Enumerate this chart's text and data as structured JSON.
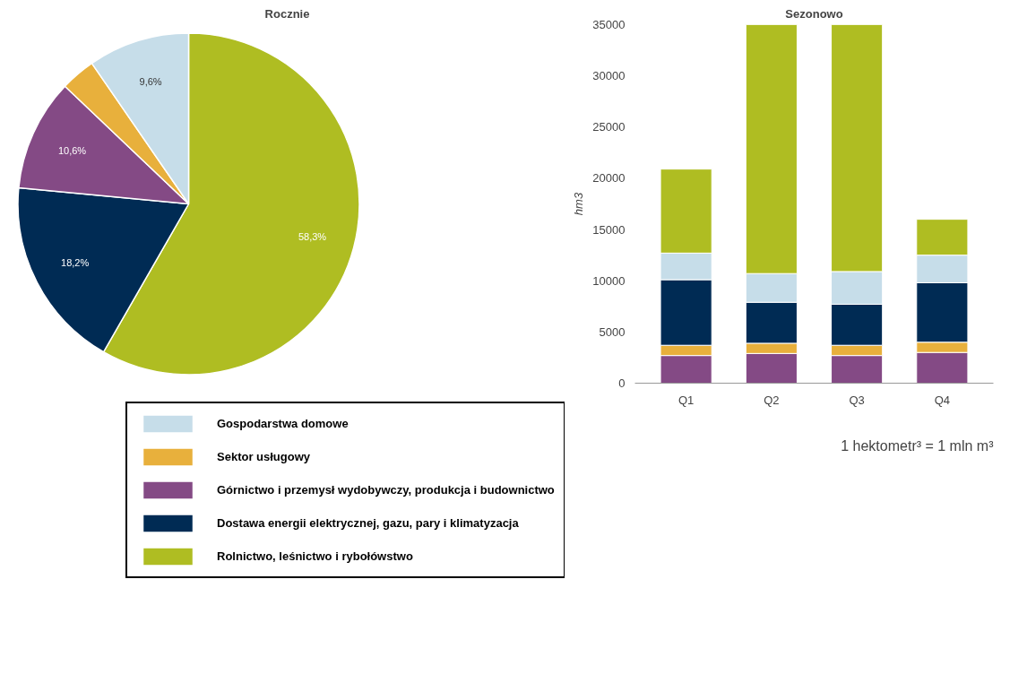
{
  "chart_data": [
    {
      "type": "pie",
      "title": "Rocznie",
      "categories": [
        "Rolnictwo, leśnictwo i rybołówstwo",
        "Dostawa energii elektrycznej, gazu, pary i klimatyzacja",
        "Górnictwo i przemysł wydobywczy, produkcja i budownictwo",
        "Sektor usługowy",
        "Gospodarstwa domowe"
      ],
      "values": [
        58.3,
        18.2,
        10.6,
        3.3,
        9.6
      ],
      "colors": [
        "#afbd22",
        "#002b54",
        "#844a85",
        "#e8b03c",
        "#c6dde9"
      ],
      "value_labels": [
        "58,3%",
        "18,2%",
        "10,6%",
        null,
        "9,6%"
      ],
      "legend": "bottom"
    },
    {
      "type": "bar",
      "title": "Sezonowo",
      "ylabel": "hm3",
      "categories": [
        "Q1",
        "Q2",
        "Q3",
        "Q4"
      ],
      "stacked": true,
      "ylim": [
        0,
        35000
      ],
      "yticks": [
        0,
        5000,
        10000,
        15000,
        20000,
        25000,
        30000,
        35000
      ],
      "series": [
        {
          "color": "#844a85",
          "values": [
            2700,
            2900,
            2700,
            3000
          ]
        },
        {
          "color": "#e8b03c",
          "values": [
            1000,
            1000,
            1000,
            1000
          ]
        },
        {
          "color": "#002b54",
          "values": [
            6400,
            4000,
            4000,
            5800
          ]
        },
        {
          "color": "#c6dde9",
          "values": [
            2600,
            2800,
            3200,
            2700
          ]
        },
        {
          "color": "#afbd22",
          "values": [
            8200,
            24300,
            24100,
            3500
          ]
        }
      ],
      "annotations": [
        "1 hektometr³ = 1 mln m³"
      ]
    }
  ]
}
